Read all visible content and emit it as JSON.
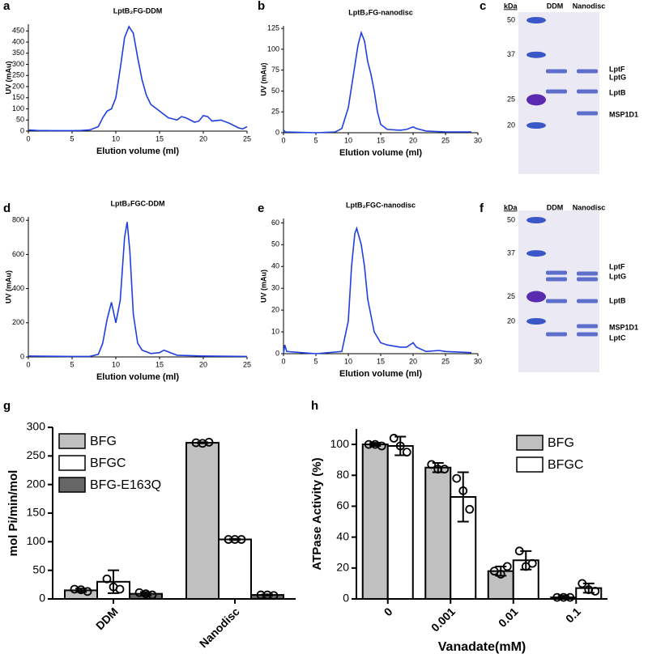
{
  "chart_data": [
    {
      "type": "line",
      "panel": "a",
      "title": "LptB₂FG-DDM",
      "xlabel": "Elution volume (ml)",
      "ylabel": "UV (mAu)",
      "color": "#1f3fe0",
      "x": [
        0,
        1,
        3,
        5,
        6,
        7,
        8,
        8.5,
        9,
        9.5,
        10,
        10.5,
        11,
        11.5,
        12,
        12.5,
        13,
        13.5,
        14,
        15,
        16,
        17,
        17.5,
        18,
        19,
        19.5,
        20,
        20.5,
        21,
        22,
        23,
        24,
        24.5,
        25
      ],
      "values": [
        5,
        3,
        2,
        2,
        3,
        5,
        20,
        60,
        90,
        100,
        150,
        280,
        420,
        470,
        440,
        330,
        230,
        160,
        120,
        90,
        60,
        50,
        65,
        60,
        40,
        45,
        70,
        65,
        45,
        50,
        35,
        15,
        10,
        20
      ],
      "xlim": [
        0,
        25
      ],
      "xticks": [
        0,
        5,
        10,
        15,
        20,
        25
      ],
      "ylim": [
        0,
        480
      ],
      "yticks": [
        0,
        50,
        100,
        150,
        200,
        250,
        300,
        350,
        400,
        450
      ]
    },
    {
      "type": "line",
      "panel": "b",
      "title": "LptB₂FG-nanodisc",
      "xlabel": "Elution volume (ml)",
      "ylabel": "UV (mAu)",
      "color": "#1f3fe0",
      "x": [
        0,
        0.3,
        5,
        8,
        9,
        10,
        10.5,
        11,
        11.5,
        12,
        12.5,
        13,
        13.5,
        14,
        14.5,
        15,
        16,
        18,
        19,
        20,
        20.5,
        22,
        25,
        29
      ],
      "values": [
        3,
        1,
        0,
        1,
        5,
        30,
        55,
        80,
        105,
        120,
        110,
        85,
        70,
        50,
        25,
        10,
        4,
        3,
        4,
        7,
        5,
        2,
        1,
        1
      ],
      "xlim": [
        0,
        30
      ],
      "xticks": [
        0,
        5,
        10,
        15,
        20,
        25,
        30
      ],
      "ylim": [
        0,
        128
      ],
      "yticks": [
        0,
        25,
        50,
        75,
        100,
        125
      ]
    },
    {
      "type": "gel",
      "panel": "c",
      "unit": "kDa",
      "markers": [
        50,
        37,
        25,
        20
      ],
      "lanes": [
        "DDM",
        "Nanodisc"
      ],
      "bands": [
        "LptF",
        "LptG",
        "LptB",
        "MSP1D1"
      ]
    },
    {
      "type": "line",
      "panel": "d",
      "title": "LptB₂FGC-DDM",
      "xlabel": "Elution volume (ml)",
      "ylabel": "UV (mAu)",
      "color": "#1f3fe0",
      "x": [
        0,
        5,
        7,
        8,
        8.5,
        9,
        9.5,
        10,
        10.5,
        11,
        11.3,
        11.6,
        12,
        12.5,
        13,
        14,
        15,
        15.5,
        16,
        17,
        20,
        25
      ],
      "values": [
        5,
        3,
        3,
        15,
        80,
        220,
        320,
        200,
        330,
        700,
        790,
        620,
        250,
        80,
        40,
        20,
        25,
        40,
        30,
        10,
        5,
        3
      ],
      "xlim": [
        0,
        25
      ],
      "xticks": [
        0,
        5,
        10,
        15,
        20,
        25
      ],
      "ylim": [
        0,
        820
      ],
      "yticks": [
        0,
        200,
        400,
        600,
        800
      ]
    },
    {
      "type": "line",
      "panel": "e",
      "title": "LptB₂FGC-nanodisc",
      "xlabel": "Elution volume (ml)",
      "ylabel": "UV (mAu)",
      "color": "#1f3fe0",
      "x": [
        0,
        0.2,
        0.5,
        5,
        9,
        10,
        10.5,
        11,
        11.3,
        12,
        12.5,
        13,
        14,
        15,
        16,
        18,
        19,
        19.5,
        20,
        20.5,
        22,
        24,
        25,
        29
      ],
      "values": [
        0,
        4,
        1,
        0,
        1,
        15,
        40,
        55,
        57.5,
        50,
        40,
        25,
        10,
        5,
        4,
        3,
        3,
        4,
        5,
        3,
        1,
        1.5,
        1,
        0.5
      ],
      "xlim": [
        0,
        30
      ],
      "xticks": [
        0,
        5,
        10,
        15,
        20,
        25,
        30
      ],
      "ylim": [
        0,
        62
      ],
      "yticks": [
        0,
        10,
        20,
        30,
        40,
        50,
        60
      ]
    },
    {
      "type": "gel",
      "panel": "f",
      "unit": "kDa",
      "markers": [
        50,
        37,
        25,
        20
      ],
      "lanes": [
        "DDM",
        "Nanodisc"
      ],
      "bands": [
        "LptF",
        "LptG",
        "LptB",
        "MSP1D1",
        "LptC"
      ]
    },
    {
      "type": "bar",
      "panel": "g",
      "ylabel": "mol Pi/min/mol",
      "categories": [
        "DDM",
        "Nanodisc"
      ],
      "series": [
        {
          "name": "BFG",
          "color": "#c0c0c0",
          "values": [
            15,
            273
          ],
          "errors": [
            3,
            1
          ],
          "points": [
            [
              17,
              16,
              13
            ],
            [
              273,
              272,
              274
            ]
          ]
        },
        {
          "name": "BFGC",
          "color": "#ffffff",
          "values": [
            30,
            104
          ],
          "errors": [
            20,
            1
          ],
          "points": [
            [
              35,
              21,
              17
            ],
            [
              104,
              104,
              104
            ]
          ]
        },
        {
          "name": "BFG-E163Q",
          "color": "#666666",
          "values": [
            9,
            7
          ],
          "errors": [
            3,
            1
          ],
          "points": [
            [
              11,
              9,
              7
            ],
            [
              7,
              7,
              6
            ]
          ]
        }
      ],
      "ylim": [
        0,
        300
      ],
      "yticks": [
        0,
        50,
        100,
        150,
        200,
        250,
        300
      ],
      "legend": "upper-left"
    },
    {
      "type": "bar",
      "panel": "h",
      "ylabel": "ATPase Activity (%)",
      "xlabel": "Vanadate(mM)",
      "categories": [
        "0",
        "0.001",
        "0.01",
        "0.1"
      ],
      "series": [
        {
          "name": "BFG",
          "color": "#c0c0c0",
          "values": [
            100,
            85,
            18,
            1
          ],
          "errors": [
            1,
            3,
            3,
            1
          ],
          "points": [
            [
              100,
              100,
              99
            ],
            [
              87,
              84,
              84
            ],
            [
              18,
              16,
              21
            ],
            [
              1,
              1,
              1
            ]
          ]
        },
        {
          "name": "BFGC",
          "color": "#ffffff",
          "values": [
            99,
            66,
            25,
            7
          ],
          "errors": [
            6,
            16,
            6,
            3
          ],
          "points": [
            [
              104,
              99,
              95
            ],
            [
              78,
              70,
              58
            ],
            [
              31,
              21,
              23
            ],
            [
              10,
              6,
              5
            ]
          ]
        }
      ],
      "ylim": [
        0,
        110
      ],
      "yticks": [
        0,
        20,
        40,
        60,
        80,
        100
      ],
      "legend": "upper-right"
    }
  ]
}
